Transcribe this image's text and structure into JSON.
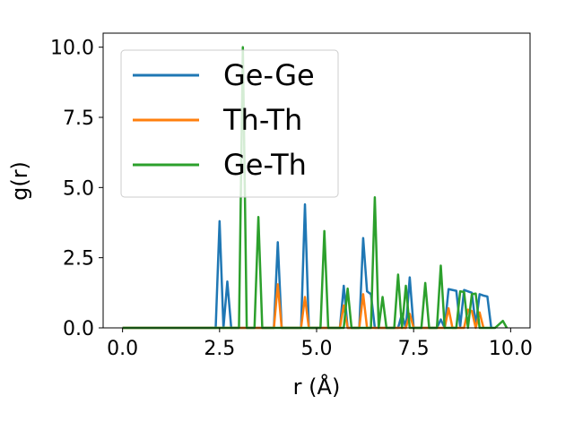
{
  "chart_data": {
    "type": "line",
    "xlabel": "r (Å)",
    "ylabel": "g(r)",
    "xlim": [
      -0.5,
      10.5
    ],
    "ylim": [
      0,
      10.5
    ],
    "xticks": [
      0.0,
      2.5,
      5.0,
      7.5,
      10.0
    ],
    "xtick_labels": [
      "0.0",
      "2.5",
      "5.0",
      "7.5",
      "10.0"
    ],
    "yticks": [
      0.0,
      2.5,
      5.0,
      7.5,
      10.0
    ],
    "ytick_labels": [
      "0.0",
      "2.5",
      "5.0",
      "7.5",
      "10.0"
    ],
    "grid": false,
    "legend_position": "upper-left",
    "series": [
      {
        "name": "Ge-Ge",
        "color": "#1f77b4",
        "points": [
          [
            0.0,
            0
          ],
          [
            2.4,
            0
          ],
          [
            2.5,
            3.8
          ],
          [
            2.6,
            0
          ],
          [
            2.7,
            1.65
          ],
          [
            2.8,
            0
          ],
          [
            3.9,
            0
          ],
          [
            4.0,
            3.05
          ],
          [
            4.1,
            0
          ],
          [
            4.6,
            0
          ],
          [
            4.7,
            4.4
          ],
          [
            4.8,
            0
          ],
          [
            5.6,
            0
          ],
          [
            5.7,
            1.5
          ],
          [
            5.8,
            0
          ],
          [
            6.1,
            0
          ],
          [
            6.2,
            3.2
          ],
          [
            6.3,
            1.3
          ],
          [
            6.4,
            1.2
          ],
          [
            6.5,
            0
          ],
          [
            7.1,
            0
          ],
          [
            7.2,
            0.5
          ],
          [
            7.3,
            0
          ],
          [
            7.4,
            1.8
          ],
          [
            7.5,
            0
          ],
          [
            8.1,
            0
          ],
          [
            8.2,
            0.3
          ],
          [
            8.3,
            0
          ],
          [
            8.4,
            1.38
          ],
          [
            8.6,
            1.32
          ],
          [
            8.7,
            0.05
          ],
          [
            8.8,
            1.35
          ],
          [
            9.0,
            1.25
          ],
          [
            9.1,
            0.1
          ],
          [
            9.2,
            1.2
          ],
          [
            9.3,
            1.15
          ],
          [
            9.4,
            1.12
          ],
          [
            9.5,
            0
          ]
        ]
      },
      {
        "name": "Th-Th",
        "color": "#ff7f0e",
        "points": [
          [
            0.0,
            0
          ],
          [
            3.9,
            0
          ],
          [
            4.0,
            1.55
          ],
          [
            4.1,
            0
          ],
          [
            4.6,
            0
          ],
          [
            4.7,
            1.1
          ],
          [
            4.8,
            0
          ],
          [
            5.6,
            0
          ],
          [
            5.7,
            0.8
          ],
          [
            5.8,
            0
          ],
          [
            6.1,
            0
          ],
          [
            6.2,
            1.2
          ],
          [
            6.3,
            0
          ],
          [
            7.3,
            0
          ],
          [
            7.4,
            0.5
          ],
          [
            7.5,
            0
          ],
          [
            8.3,
            0
          ],
          [
            8.4,
            0.7
          ],
          [
            8.5,
            0
          ],
          [
            8.8,
            0
          ],
          [
            8.9,
            0.65
          ],
          [
            9.0,
            0.6
          ],
          [
            9.1,
            0
          ],
          [
            9.2,
            0.55
          ],
          [
            9.3,
            0
          ]
        ]
      },
      {
        "name": "Ge-Th",
        "color": "#2ca02c",
        "points": [
          [
            0.0,
            0
          ],
          [
            3.0,
            0
          ],
          [
            3.1,
            10.0
          ],
          [
            3.2,
            0
          ],
          [
            3.4,
            0
          ],
          [
            3.5,
            3.95
          ],
          [
            3.6,
            0
          ],
          [
            5.1,
            0
          ],
          [
            5.2,
            3.45
          ],
          [
            5.3,
            0
          ],
          [
            5.7,
            0
          ],
          [
            5.8,
            1.4
          ],
          [
            5.9,
            0
          ],
          [
            6.4,
            0
          ],
          [
            6.5,
            4.65
          ],
          [
            6.6,
            0
          ],
          [
            6.7,
            1.1
          ],
          [
            6.8,
            0
          ],
          [
            7.0,
            0
          ],
          [
            7.1,
            1.9
          ],
          [
            7.2,
            0
          ],
          [
            7.3,
            1.5
          ],
          [
            7.4,
            0
          ],
          [
            7.7,
            0
          ],
          [
            7.8,
            1.6
          ],
          [
            7.9,
            0
          ],
          [
            8.1,
            0
          ],
          [
            8.2,
            2.22
          ],
          [
            8.3,
            0
          ],
          [
            8.6,
            0
          ],
          [
            8.7,
            1.3
          ],
          [
            8.8,
            1.28
          ],
          [
            8.9,
            0
          ],
          [
            9.0,
            1.2
          ],
          [
            9.1,
            1.22
          ],
          [
            9.2,
            0
          ],
          [
            9.6,
            0
          ],
          [
            9.8,
            0.25
          ],
          [
            9.9,
            0
          ]
        ]
      }
    ]
  }
}
